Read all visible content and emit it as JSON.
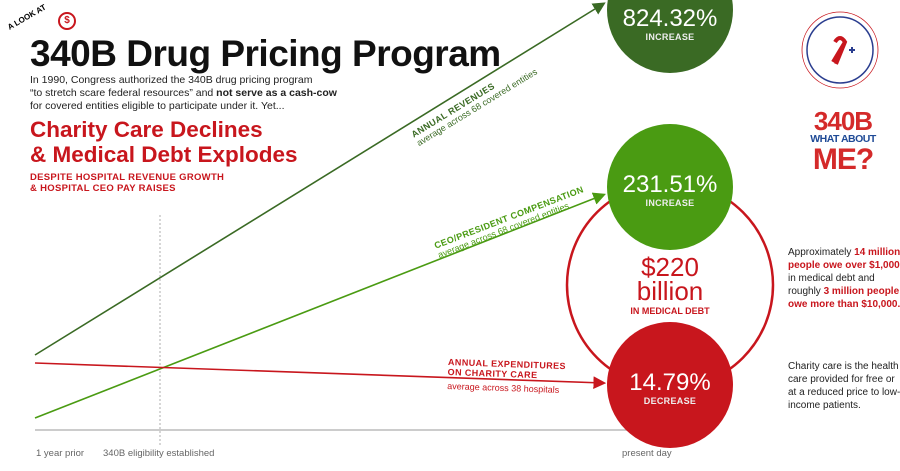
{
  "header": {
    "kicker": "A LOOK AT",
    "title": "340B Drug Pricing Program",
    "intro_1": "In 1990, Congress authorized the 340B drug pricing program",
    "intro_2a": "“to stretch scare federal resources” and ",
    "intro_2b": "not serve as a cash-cow",
    "intro_3": "for covered entities eligible to participate under it. Yet...",
    "headline_1": "Charity Care Declines",
    "headline_2": "& Medical Debt Explodes",
    "sub_1": "DESPITE HOSPITAL REVENUE GROWTH",
    "sub_2": "& HOSPITAL CEO PAY RAISES"
  },
  "logos": {
    "adap": "ADAP ADVOCACY — AIDS Drug Assistance Programs",
    "campaign_1": "340B",
    "campaign_2": "WHAT ABOUT",
    "campaign_3": "ME?"
  },
  "debt": {
    "amount": "$220",
    "unit": "billion",
    "label": "IN MEDICAL DEBT"
  },
  "side": {
    "p1_a": "Approximately ",
    "p1_b": "14 million people owe over $1,000",
    "p1_c": " in medical debt and roughly ",
    "p1_d": "3 million people owe more than $10,000.",
    "p2": "Charity care is the health care provided for free or at a reduced price to low-income patients."
  },
  "colors": {
    "dark_green": "#3a6a24",
    "green": "#4a9b12",
    "red": "#c8161d",
    "axis": "#bbbbbb"
  },
  "chart_data": {
    "type": "line",
    "categories": [
      "1 year prior",
      "340B eligibility established",
      "present day"
    ],
    "grid": false,
    "series": [
      {
        "name": "ANNUAL REVENUES",
        "note": "average across 68 covered entities",
        "change": "824.32%",
        "direction": "INCREASE",
        "color": "#3a6a24"
      },
      {
        "name": "CEO/PRESIDENT COMPENSATION",
        "note": "average across 68 covered entities",
        "change": "231.51%",
        "direction": "INCREASE",
        "color": "#4a9b12"
      },
      {
        "name": "ANNUAL EXPENDITURES ON CHARITY CARE",
        "name_1": "ANNUAL EXPENDITURES",
        "name_2": "ON CHARITY CARE",
        "note": "average across 38 hospitals",
        "change": "14.79%",
        "direction": "DECREASE",
        "color": "#c8161d"
      }
    ]
  }
}
